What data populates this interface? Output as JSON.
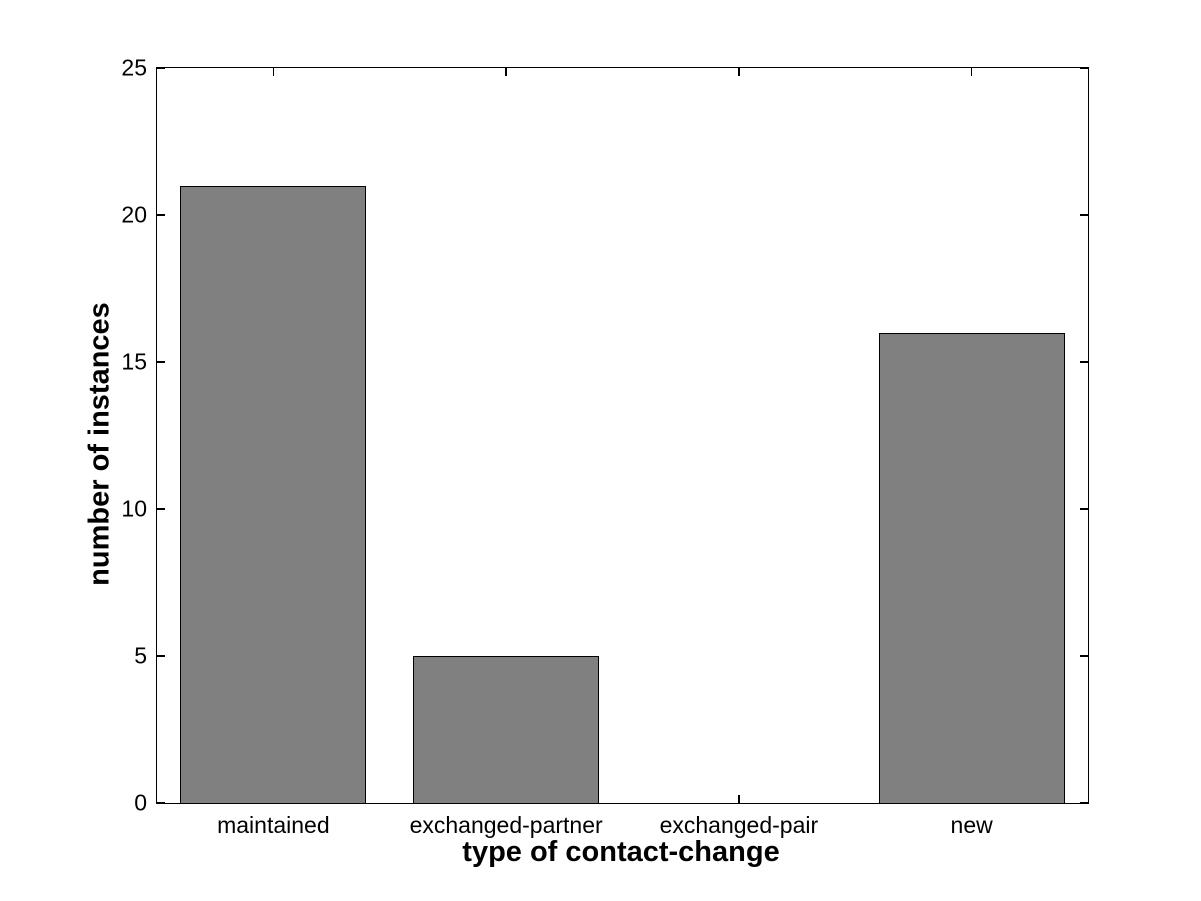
{
  "figure": {
    "background": "#ffffff"
  },
  "chart_data": {
    "type": "bar",
    "categories": [
      "maintained",
      "exchanged-partner",
      "exchanged-pair",
      "new"
    ],
    "values": [
      21,
      5,
      0,
      16
    ],
    "xlabel": "type of contact-change",
    "ylabel": "number of instances",
    "ylim": [
      0,
      25
    ],
    "yticks": [
      0,
      5,
      10,
      15,
      20,
      25
    ],
    "bar_width_fraction": 0.8,
    "bar_color": "#808080",
    "bar_edge_color": "#000000",
    "axis_color": "#000000",
    "grid": false,
    "legend_position": "none"
  }
}
